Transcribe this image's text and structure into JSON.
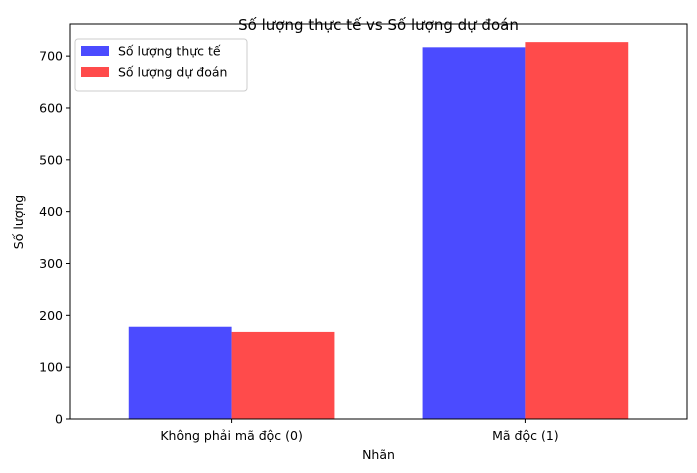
{
  "chart_data": {
    "type": "bar",
    "title": "Số lượng thực tế vs Số lượng dự đoán",
    "xlabel": "Nhãn",
    "ylabel": "Số lượng",
    "categories": [
      "Không phải mã độc (0)",
      "Mã độc (1)"
    ],
    "series": [
      {
        "name": "Số lượng thực tế",
        "values": [
          178,
          717
        ],
        "color": "#4b4bff"
      },
      {
        "name": "Số lượng dự đoán",
        "values": [
          168,
          727
        ],
        "color": "#ff4b4b"
      }
    ],
    "ylim": [
      0,
      762
    ],
    "yticks": [
      "0",
      "100",
      "200",
      "300",
      "400",
      "500",
      "600",
      "700"
    ],
    "grid": false,
    "legend_position": "top-left"
  }
}
